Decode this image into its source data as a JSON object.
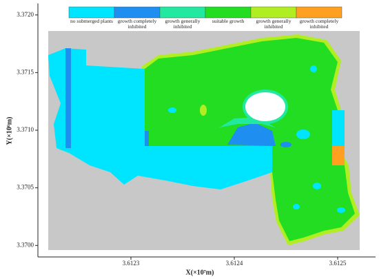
{
  "chart_data": {
    "type": "map",
    "x_label": "X(×10⁷m)",
    "y_label": "Y(×10⁶m)",
    "xlim": [
      3.61221,
      3.61254
    ],
    "ylim": [
      3.3699,
      3.3721
    ],
    "xticks": [
      3.6123,
      3.6124,
      3.6125
    ],
    "yticks": [
      {
        "value": 3.372,
        "label": "3.3720"
      },
      3.3715,
      {
        "value": 3.371,
        "label": "3.3710"
      },
      3.3705,
      {
        "value": 3.37,
        "label": "3.3700"
      }
    ],
    "legend": [
      {
        "label": "no submerged plants",
        "color": "#00e5ff"
      },
      {
        "label": "growth completely inhibited",
        "color": "#1e8ff0"
      },
      {
        "label": "growth generally inhibited",
        "color": "#22e8a0"
      },
      {
        "label": "suitable growth",
        "color": "#22dd22"
      },
      {
        "label": "growth generally inhibited",
        "color": "#b0ee22"
      },
      {
        "label": "growth completely inhibited",
        "color": "#ffa020"
      }
    ]
  }
}
